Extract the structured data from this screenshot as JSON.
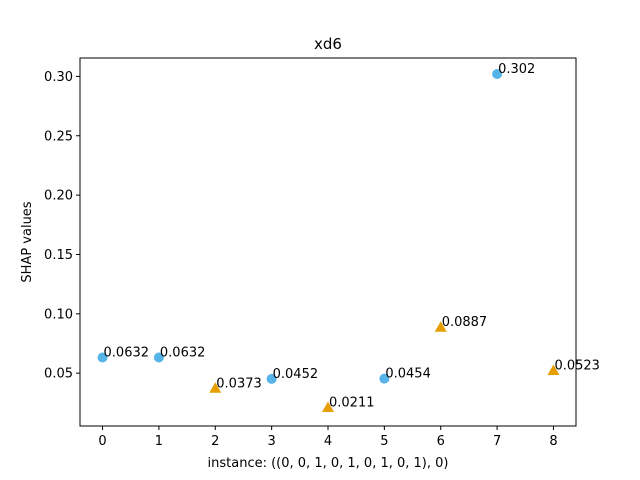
{
  "chart_data": {
    "type": "scatter",
    "title": "xd6",
    "xlabel": "instance: ((0, 0, 1, 0, 1, 0, 1, 0, 1), 0)",
    "ylabel": "SHAP values",
    "xlim": [
      -0.4,
      8.4
    ],
    "ylim": [
      0.0055,
      0.3155
    ],
    "xticks": [
      0,
      1,
      2,
      3,
      4,
      5,
      6,
      7,
      8
    ],
    "xtick_labels": [
      "0",
      "1",
      "2",
      "3",
      "4",
      "5",
      "6",
      "7",
      "8"
    ],
    "yticks": [
      0.05,
      0.1,
      0.15,
      0.2,
      0.25,
      0.3
    ],
    "ytick_labels": [
      "0.05",
      "0.10",
      "0.15",
      "0.20",
      "0.25",
      "0.30"
    ],
    "grid": false,
    "legend": "none",
    "series": [
      {
        "marker": "circle",
        "color": "#56b4e9",
        "points": [
          {
            "x": 0,
            "y": 0.0632,
            "label": "0.0632"
          },
          {
            "x": 1,
            "y": 0.0632,
            "label": "0.0632"
          },
          {
            "x": 3,
            "y": 0.0452,
            "label": "0.0452"
          },
          {
            "x": 5,
            "y": 0.0454,
            "label": "0.0454"
          },
          {
            "x": 7,
            "y": 0.302,
            "label": "0.302"
          }
        ]
      },
      {
        "marker": "triangle",
        "color": "#e69f00",
        "points": [
          {
            "x": 2,
            "y": 0.0373,
            "label": "0.0373"
          },
          {
            "x": 4,
            "y": 0.0211,
            "label": "0.0211"
          },
          {
            "x": 6,
            "y": 0.0887,
            "label": "0.0887"
          },
          {
            "x": 8,
            "y": 0.0523,
            "label": "0.0523"
          }
        ]
      }
    ]
  }
}
